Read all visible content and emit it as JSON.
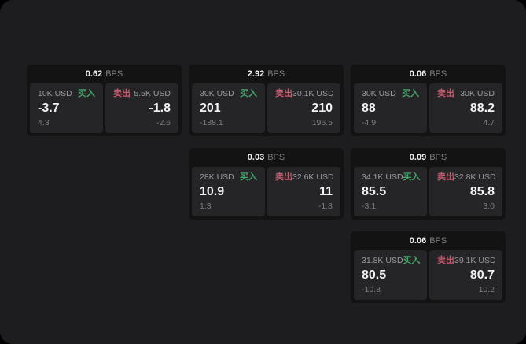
{
  "colors": {
    "page_bg": "#000000",
    "window_bg": "#1d1d1f",
    "card_bg": "#131314",
    "panel_bg": "#252527",
    "text_primary": "#f2f2f2",
    "text_label": "#9b9ba0",
    "text_muted": "#7f7f84",
    "buy_green": "#47a56a",
    "sell_red": "#c25a6e"
  },
  "labels": {
    "bps": "BPS",
    "buy": "买入",
    "sell": "卖出"
  },
  "cards": [
    {
      "bps": "0.62",
      "row": 1,
      "col": 1,
      "buy": {
        "size": "10K USD",
        "price": "-3.7",
        "delta": "4.3"
      },
      "sell": {
        "size": "5.5K USD",
        "price": "-1.8",
        "delta": "-2.6"
      }
    },
    {
      "bps": "2.92",
      "row": 1,
      "col": 2,
      "buy": {
        "size": "30K USD",
        "price": "201",
        "delta": "-188.1"
      },
      "sell": {
        "size": "30.1K USD",
        "price": "210",
        "delta": "196.5"
      }
    },
    {
      "bps": "0.06",
      "row": 1,
      "col": 3,
      "buy": {
        "size": "30K USD",
        "price": "88",
        "delta": "-4.9"
      },
      "sell": {
        "size": "30K USD",
        "price": "88.2",
        "delta": "4.7"
      }
    },
    {
      "bps": "0.03",
      "row": 2,
      "col": 2,
      "buy": {
        "size": "28K USD",
        "price": "10.9",
        "delta": "1.3"
      },
      "sell": {
        "size": "32.6K USD",
        "price": "11",
        "delta": "-1.8"
      }
    },
    {
      "bps": "0.09",
      "row": 2,
      "col": 3,
      "buy": {
        "size": "34.1K USD",
        "price": "85.5",
        "delta": "-3.1"
      },
      "sell": {
        "size": "32.8K USD",
        "price": "85.8",
        "delta": "3.0"
      }
    },
    {
      "bps": "0.06",
      "row": 3,
      "col": 3,
      "buy": {
        "size": "31.8K USD",
        "price": "80.5",
        "delta": "-10.8"
      },
      "sell": {
        "size": "39.1K USD",
        "price": "80.7",
        "delta": "10.2"
      }
    }
  ]
}
